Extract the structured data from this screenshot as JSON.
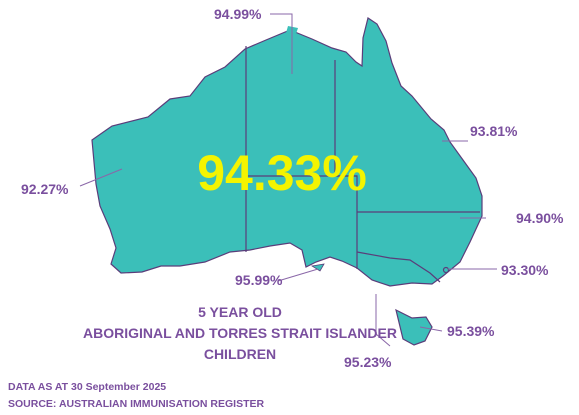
{
  "national_rate": "94.33%",
  "cohort": {
    "line1": "5 YEAR OLD",
    "line2": "ABORIGINAL AND TORRES STRAIT ISLANDER",
    "line3": "CHILDREN"
  },
  "data_as_at": "DATA AS AT 30 September 2025",
  "source": "SOURCE: AUSTRALIAN IMMUNISATION REGISTER",
  "states": {
    "nt": "94.99%",
    "qld": "93.81%",
    "wa": "92.27%",
    "nsw": "94.90%",
    "sa": "95.99%",
    "act": "93.30%",
    "tas": "95.39%",
    "vic": "95.23%"
  },
  "colors": {
    "land": "#3bbfb9",
    "border": "#5a3d7a",
    "label": "#7a4f9e",
    "headline": "#f4f400"
  }
}
